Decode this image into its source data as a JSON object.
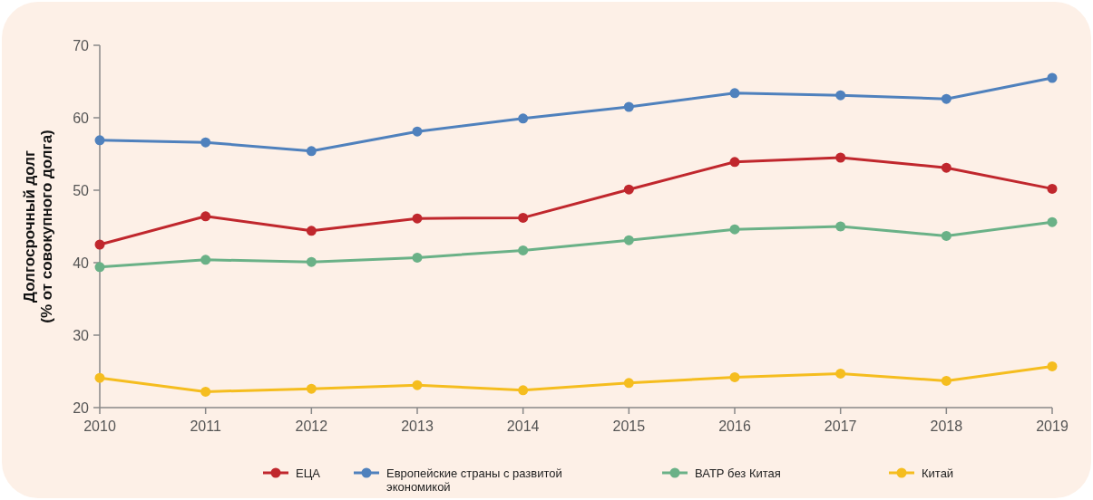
{
  "chart_data": {
    "type": "line",
    "ylabel": "Долгосрочный долг\n(% от совокупного долга)",
    "x": [
      2010,
      2011,
      2012,
      2013,
      2014,
      2015,
      2016,
      2017,
      2018,
      2019
    ],
    "xlim": [
      2010,
      2019
    ],
    "xticks": [
      2010,
      2011,
      2012,
      2013,
      2014,
      2015,
      2016,
      2017,
      2018,
      2019
    ],
    "ylim": [
      20,
      70
    ],
    "yticks": [
      20,
      30,
      40,
      50,
      60,
      70
    ],
    "grid": false,
    "legend": "bottom",
    "marker": "circle",
    "line_style": "solid",
    "series": [
      {
        "name": "ЕЦА",
        "color": "#c0272d",
        "values": [
          42.5,
          46.4,
          44.4,
          46.1,
          46.2,
          50.1,
          53.9,
          54.5,
          53.1,
          50.2
        ]
      },
      {
        "name": "Европейские страны с развитой экономикой",
        "color": "#4f81bd",
        "values": [
          56.9,
          56.6,
          55.4,
          58.1,
          59.9,
          61.5,
          63.4,
          63.1,
          62.6,
          65.5
        ]
      },
      {
        "name": "ВАТР без Китая",
        "color": "#6ab187",
        "values": [
          39.4,
          40.4,
          40.1,
          40.7,
          41.7,
          43.1,
          44.6,
          45.0,
          43.7,
          45.6
        ]
      },
      {
        "name": "Китай",
        "color": "#f5bd1f",
        "values": [
          24.1,
          22.2,
          22.6,
          23.1,
          22.4,
          23.4,
          24.2,
          24.7,
          23.7,
          25.7
        ]
      }
    ]
  }
}
